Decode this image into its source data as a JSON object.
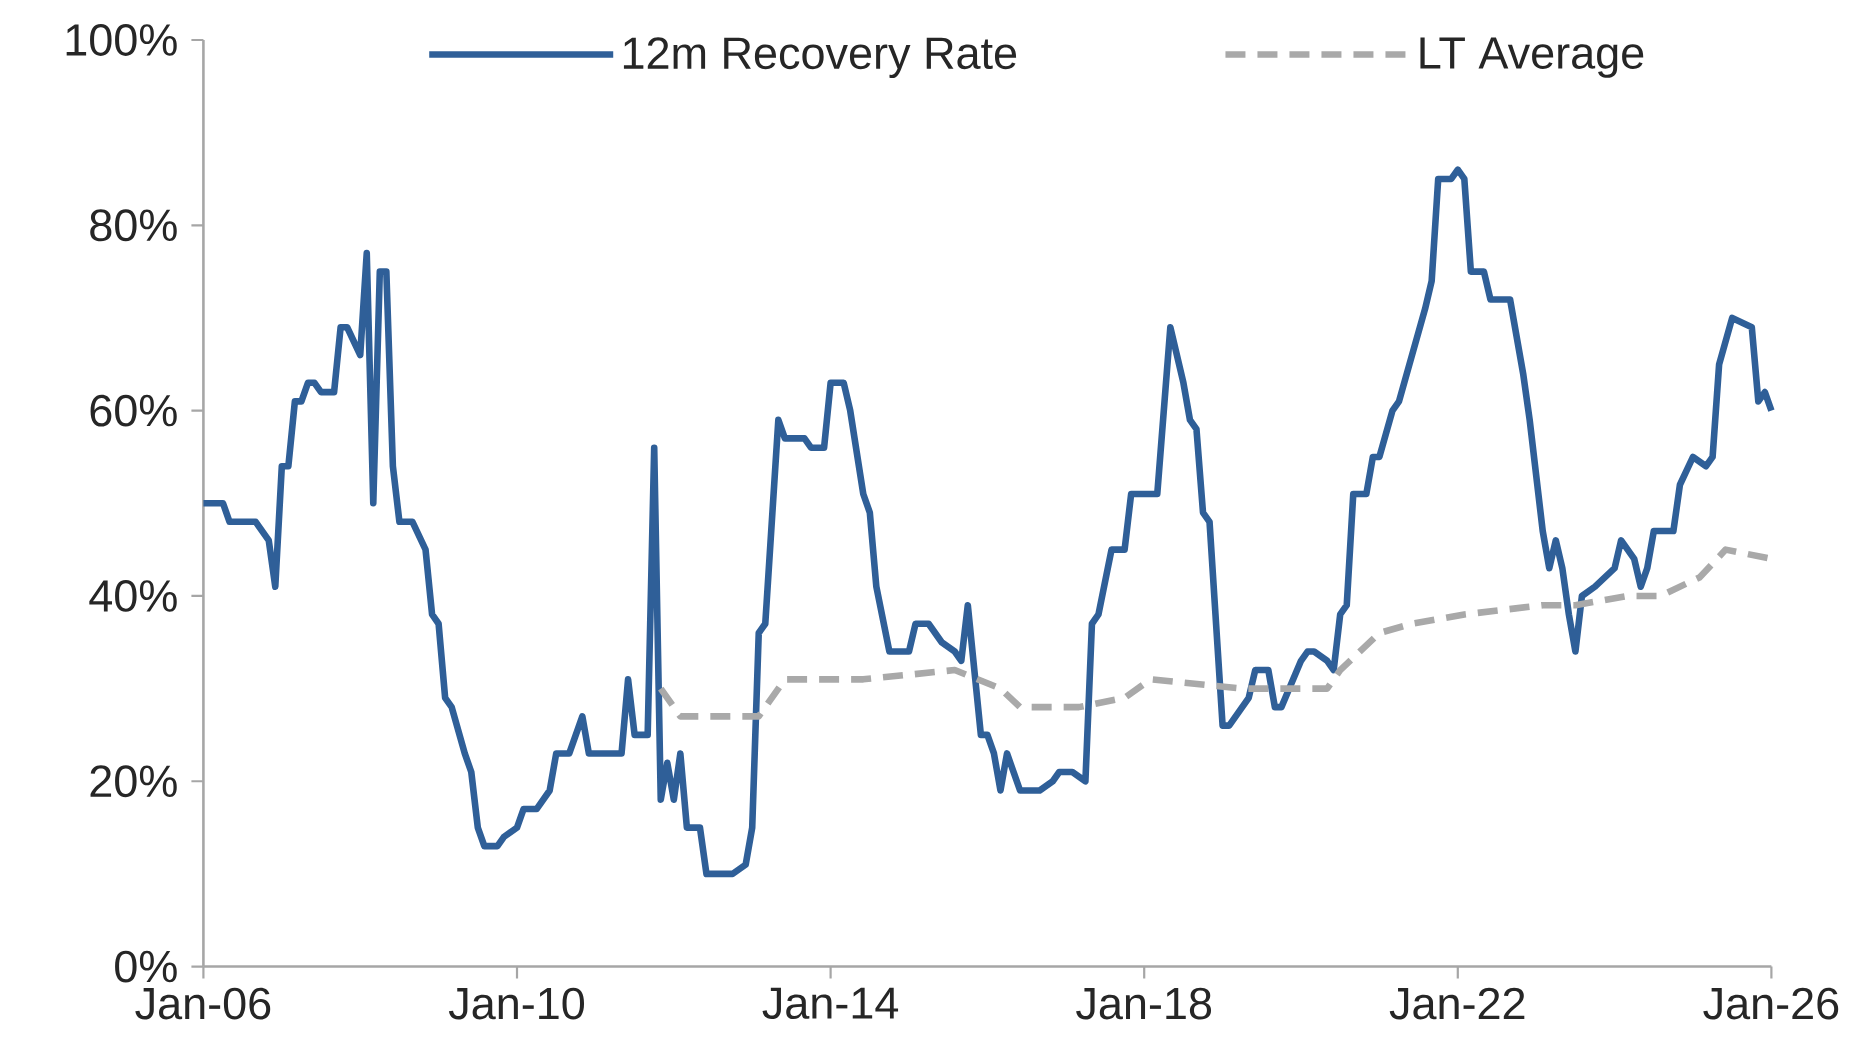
{
  "chart_data": {
    "type": "line",
    "xlim": [
      "2006-01",
      "2026-01"
    ],
    "xticks": [
      {
        "value": "2006-01",
        "label": "Jan-06"
      },
      {
        "value": "2010-01",
        "label": "Jan-10"
      },
      {
        "value": "2014-01",
        "label": "Jan-14"
      },
      {
        "value": "2018-01",
        "label": "Jan-18"
      },
      {
        "value": "2022-01",
        "label": "Jan-22"
      },
      {
        "value": "2026-01",
        "label": "Jan-26"
      }
    ],
    "ylim": [
      0,
      100
    ],
    "yticks": [
      {
        "value": 0,
        "label": "0%"
      },
      {
        "value": 20,
        "label": "20%"
      },
      {
        "value": 40,
        "label": "40%"
      },
      {
        "value": 60,
        "label": "60%"
      },
      {
        "value": 80,
        "label": "80%"
      },
      {
        "value": 100,
        "label": "100%"
      }
    ],
    "legend": "top",
    "series": [
      {
        "name": "12m Recovery Rate",
        "color": "#2f5f98",
        "line_style": "solid",
        "x": [
          "2006-01",
          "2006-04",
          "2006-05",
          "2006-09",
          "2006-11",
          "2006-12",
          "2007-01",
          "2007-02",
          "2007-03",
          "2007-04",
          "2007-05",
          "2007-06",
          "2007-07",
          "2007-09",
          "2007-10",
          "2007-11",
          "2008-01",
          "2008-02",
          "2008-03",
          "2008-04",
          "2008-05",
          "2008-06",
          "2008-07",
          "2008-09",
          "2008-11",
          "2008-12",
          "2009-01",
          "2009-02",
          "2009-03",
          "2009-05",
          "2009-06",
          "2009-07",
          "2009-08",
          "2009-10",
          "2009-11",
          "2010-01",
          "2010-02",
          "2010-04",
          "2010-06",
          "2010-07",
          "2010-09",
          "2010-10",
          "2010-11",
          "2010-12",
          "2011-05",
          "2011-06",
          "2011-07",
          "2011-09",
          "2011-10",
          "2011-11",
          "2011-12",
          "2012-01",
          "2012-02",
          "2012-03",
          "2012-05",
          "2012-06",
          "2012-10",
          "2012-12",
          "2013-01",
          "2013-02",
          "2013-03",
          "2013-05",
          "2013-06",
          "2013-09",
          "2013-10",
          "2013-12",
          "2014-01",
          "2014-03",
          "2014-04",
          "2014-06",
          "2014-07",
          "2014-08",
          "2014-10",
          "2015-01",
          "2015-02",
          "2015-04",
          "2015-06",
          "2015-08",
          "2015-09",
          "2015-10",
          "2015-11",
          "2015-12",
          "2016-01",
          "2016-02",
          "2016-03",
          "2016-04",
          "2016-06",
          "2016-09",
          "2016-11",
          "2016-12",
          "2017-02",
          "2017-04",
          "2017-05",
          "2017-06",
          "2017-08",
          "2017-10",
          "2017-11",
          "2018-03",
          "2018-05",
          "2018-07",
          "2018-08",
          "2018-09",
          "2018-10",
          "2018-11",
          "2019-01",
          "2019-02",
          "2019-03",
          "2019-05",
          "2019-06",
          "2019-08",
          "2019-09",
          "2019-10",
          "2020-01",
          "2020-02",
          "2020-03",
          "2020-05",
          "2020-06",
          "2020-07",
          "2020-08",
          "2020-09",
          "2020-11",
          "2020-12",
          "2021-01",
          "2021-03",
          "2021-04",
          "2021-06",
          "2021-08",
          "2021-09",
          "2021-10",
          "2021-12",
          "2022-01",
          "2022-02",
          "2022-03",
          "2022-05",
          "2022-06",
          "2022-09",
          "2022-11",
          "2022-12",
          "2023-02",
          "2023-03",
          "2023-04",
          "2023-05",
          "2023-06",
          "2023-07",
          "2023-08",
          "2023-10",
          "2024-01",
          "2024-02",
          "2024-04",
          "2024-05",
          "2024-06",
          "2024-07",
          "2024-10",
          "2024-11",
          "2025-01",
          "2025-03",
          "2025-04",
          "2025-05",
          "2025-07",
          "2025-10",
          "2025-11",
          "2025-12",
          "2026-01"
        ],
        "values": [
          50,
          50,
          48,
          48,
          46,
          41,
          54,
          54,
          61,
          61,
          63,
          63,
          62,
          62,
          69,
          69,
          66,
          77,
          50,
          75,
          75,
          54,
          48,
          48,
          45,
          38,
          37,
          29,
          28,
          23,
          21,
          15,
          13,
          13,
          14,
          15,
          17,
          17,
          19,
          23,
          23,
          25,
          27,
          23,
          23,
          31,
          25,
          25,
          56,
          18,
          22,
          18,
          23,
          15,
          15,
          10,
          10,
          11,
          15,
          36,
          37,
          59,
          57,
          57,
          56,
          56,
          63,
          63,
          60,
          51,
          49,
          41,
          34,
          34,
          37,
          37,
          35,
          34,
          33,
          39,
          32,
          25,
          25,
          23,
          19,
          23,
          19,
          19,
          20,
          21,
          21,
          20,
          37,
          38,
          45,
          45,
          51,
          51,
          69,
          63,
          59,
          58,
          49,
          48,
          26,
          26,
          27,
          29,
          32,
          32,
          28,
          28,
          33,
          34,
          34,
          33,
          32,
          38,
          39,
          51,
          51,
          55,
          55,
          60,
          61,
          66,
          71,
          74,
          85,
          85,
          86,
          85,
          75,
          75,
          72,
          72,
          64,
          59,
          47,
          43,
          46,
          43,
          38,
          34,
          40,
          41,
          43,
          46,
          44,
          41,
          43,
          47,
          47,
          52,
          55,
          54,
          55,
          65,
          70,
          69,
          61,
          62,
          60
        ]
      },
      {
        "name": "LT Average",
        "color": "#a9a9a9",
        "line_style": "dashed",
        "x": [
          "2011-11",
          "2012-02",
          "2013-02",
          "2013-06",
          "2014-06",
          "2015-08",
          "2016-03",
          "2016-06",
          "2017-03",
          "2017-10",
          "2018-02",
          "2019-04",
          "2020-05",
          "2020-07",
          "2021-01",
          "2021-06",
          "2022-02",
          "2023-02",
          "2023-07",
          "2024-03",
          "2024-08",
          "2025-02",
          "2025-06",
          "2026-01"
        ],
        "values": [
          30,
          27,
          27,
          31,
          31,
          32,
          30,
          28,
          28,
          29,
          31,
          30,
          30,
          32,
          36,
          37,
          38,
          39,
          39,
          40,
          40,
          42,
          45,
          44
        ]
      }
    ]
  }
}
